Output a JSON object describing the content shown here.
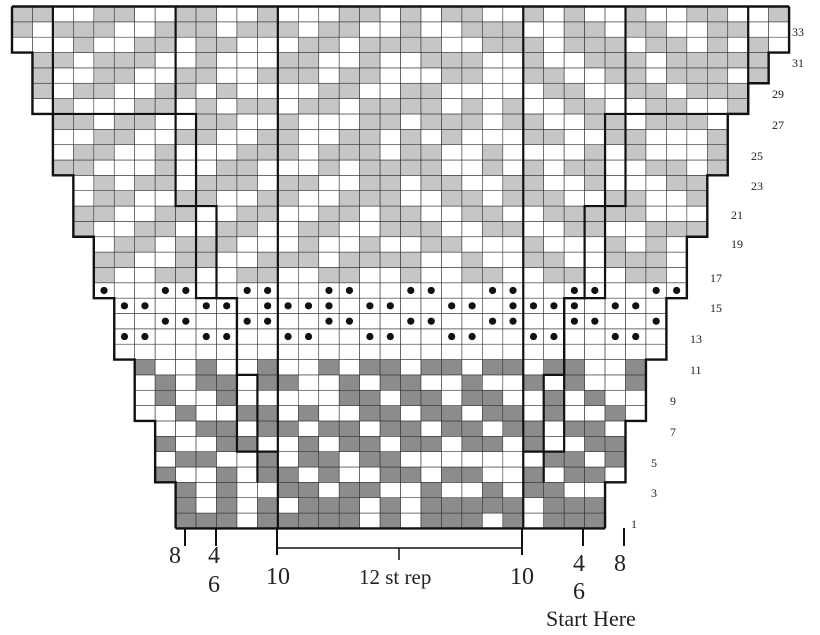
{
  "colors": {
    "background": "#ffffff",
    "light": "#c6c6c6",
    "dark": "#8c8c8c",
    "grid": "#333333",
    "outline": "#111111"
  },
  "row_labels": [
    "1",
    "3",
    "5",
    "7",
    "9",
    "11",
    "13",
    "15",
    "17",
    "19",
    "21",
    "23",
    "25",
    "27",
    "29",
    "31",
    "33"
  ],
  "bottom_labels": {
    "left_8": "8",
    "left_4": "4",
    "left_6": "6",
    "center_left_10": "10",
    "rep": "12 st rep",
    "center_right_10": "10",
    "right_4": "4",
    "right_6": "6",
    "right_8": "8",
    "start_here": "Start Here"
  },
  "legend_semantics": {
    "dot-icon": "purl/bobble stitch symbol",
    "light-square": "contrast color A",
    "dark-square": "contrast color B"
  }
}
